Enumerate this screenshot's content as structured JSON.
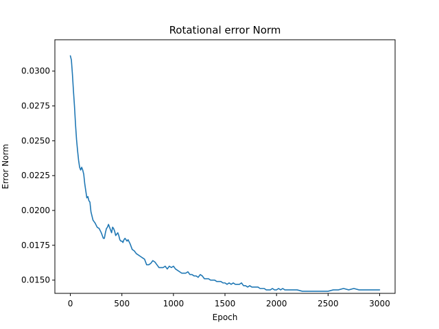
{
  "chart_data": {
    "type": "line",
    "title": "Rotational error Norm",
    "xlabel": "Epoch",
    "ylabel": "Error Norm",
    "xlim": [
      -150,
      3150
    ],
    "ylim": [
      0.01405,
      0.03225
    ],
    "xticks": [
      0,
      500,
      1000,
      1500,
      2000,
      2500,
      3000
    ],
    "xtick_labels": [
      "0",
      "500",
      "1000",
      "1500",
      "2000",
      "2500",
      "3000"
    ],
    "yticks": [
      0.015,
      0.0175,
      0.02,
      0.0225,
      0.025,
      0.0275,
      0.03
    ],
    "ytick_labels": [
      "0.0150",
      "0.0175",
      "0.0200",
      "0.0225",
      "0.0250",
      "0.0275",
      "0.0300"
    ],
    "grid": false,
    "series": [
      {
        "name": "Rotational error Norm",
        "color": "#1f77b4",
        "x": [
          0,
          10,
          20,
          30,
          40,
          50,
          60,
          70,
          80,
          90,
          100,
          110,
          120,
          130,
          140,
          150,
          160,
          170,
          180,
          190,
          200,
          210,
          220,
          230,
          240,
          260,
          280,
          300,
          310,
          320,
          330,
          340,
          350,
          360,
          370,
          380,
          390,
          400,
          410,
          420,
          430,
          440,
          450,
          460,
          470,
          480,
          490,
          500,
          510,
          520,
          530,
          540,
          550,
          560,
          580,
          600,
          620,
          640,
          660,
          680,
          700,
          720,
          740,
          760,
          780,
          800,
          820,
          840,
          860,
          880,
          900,
          920,
          940,
          960,
          980,
          1000,
          1020,
          1040,
          1060,
          1080,
          1100,
          1120,
          1140,
          1160,
          1180,
          1200,
          1220,
          1240,
          1260,
          1280,
          1300,
          1320,
          1340,
          1360,
          1380,
          1400,
          1420,
          1440,
          1460,
          1480,
          1500,
          1520,
          1540,
          1560,
          1580,
          1600,
          1620,
          1640,
          1660,
          1680,
          1700,
          1720,
          1740,
          1760,
          1780,
          1800,
          1820,
          1840,
          1860,
          1880,
          1900,
          1920,
          1940,
          1960,
          1980,
          2000,
          2020,
          2040,
          2060,
          2080,
          2100,
          2150,
          2200,
          2250,
          2300,
          2350,
          2400,
          2450,
          2500,
          2550,
          2600,
          2650,
          2700,
          2750,
          2800,
          2850,
          2900,
          2950,
          3000
        ],
        "values": [
          0.0311,
          0.0308,
          0.0298,
          0.0286,
          0.0275,
          0.0262,
          0.0251,
          0.0243,
          0.0236,
          0.0231,
          0.0229,
          0.0231,
          0.0229,
          0.0226,
          0.0219,
          0.0214,
          0.0209,
          0.021,
          0.0207,
          0.0206,
          0.0199,
          0.0196,
          0.0193,
          0.0192,
          0.0191,
          0.0188,
          0.0187,
          0.0184,
          0.0182,
          0.018,
          0.018,
          0.0184,
          0.0187,
          0.0188,
          0.019,
          0.0188,
          0.0186,
          0.0184,
          0.0188,
          0.0187,
          0.0185,
          0.0182,
          0.0183,
          0.0184,
          0.0182,
          0.0179,
          0.0178,
          0.0178,
          0.0177,
          0.0179,
          0.018,
          0.0179,
          0.0178,
          0.0179,
          0.0176,
          0.0172,
          0.0171,
          0.0169,
          0.0168,
          0.0167,
          0.0166,
          0.0165,
          0.0161,
          0.0161,
          0.0162,
          0.0164,
          0.0163,
          0.0161,
          0.0159,
          0.0159,
          0.0159,
          0.016,
          0.0158,
          0.016,
          0.0159,
          0.016,
          0.0158,
          0.0157,
          0.0156,
          0.0155,
          0.0155,
          0.0155,
          0.0156,
          0.0154,
          0.0154,
          0.0153,
          0.0153,
          0.0152,
          0.0154,
          0.0153,
          0.0151,
          0.0151,
          0.0151,
          0.015,
          0.015,
          0.015,
          0.0149,
          0.0149,
          0.0149,
          0.0148,
          0.0148,
          0.0147,
          0.0148,
          0.0147,
          0.0148,
          0.0147,
          0.0147,
          0.0147,
          0.0148,
          0.0146,
          0.0146,
          0.0145,
          0.0146,
          0.0145,
          0.0145,
          0.0145,
          0.0145,
          0.0144,
          0.0144,
          0.0144,
          0.0143,
          0.0143,
          0.0143,
          0.0144,
          0.0143,
          0.0143,
          0.0144,
          0.0143,
          0.0144,
          0.0143,
          0.0143,
          0.0143,
          0.0143,
          0.0142,
          0.0142,
          0.0142,
          0.0142,
          0.0142,
          0.0142,
          0.0143,
          0.0143,
          0.0144,
          0.0143,
          0.0144,
          0.0143,
          0.0143,
          0.0143,
          0.0143,
          0.0143
        ]
      }
    ]
  }
}
